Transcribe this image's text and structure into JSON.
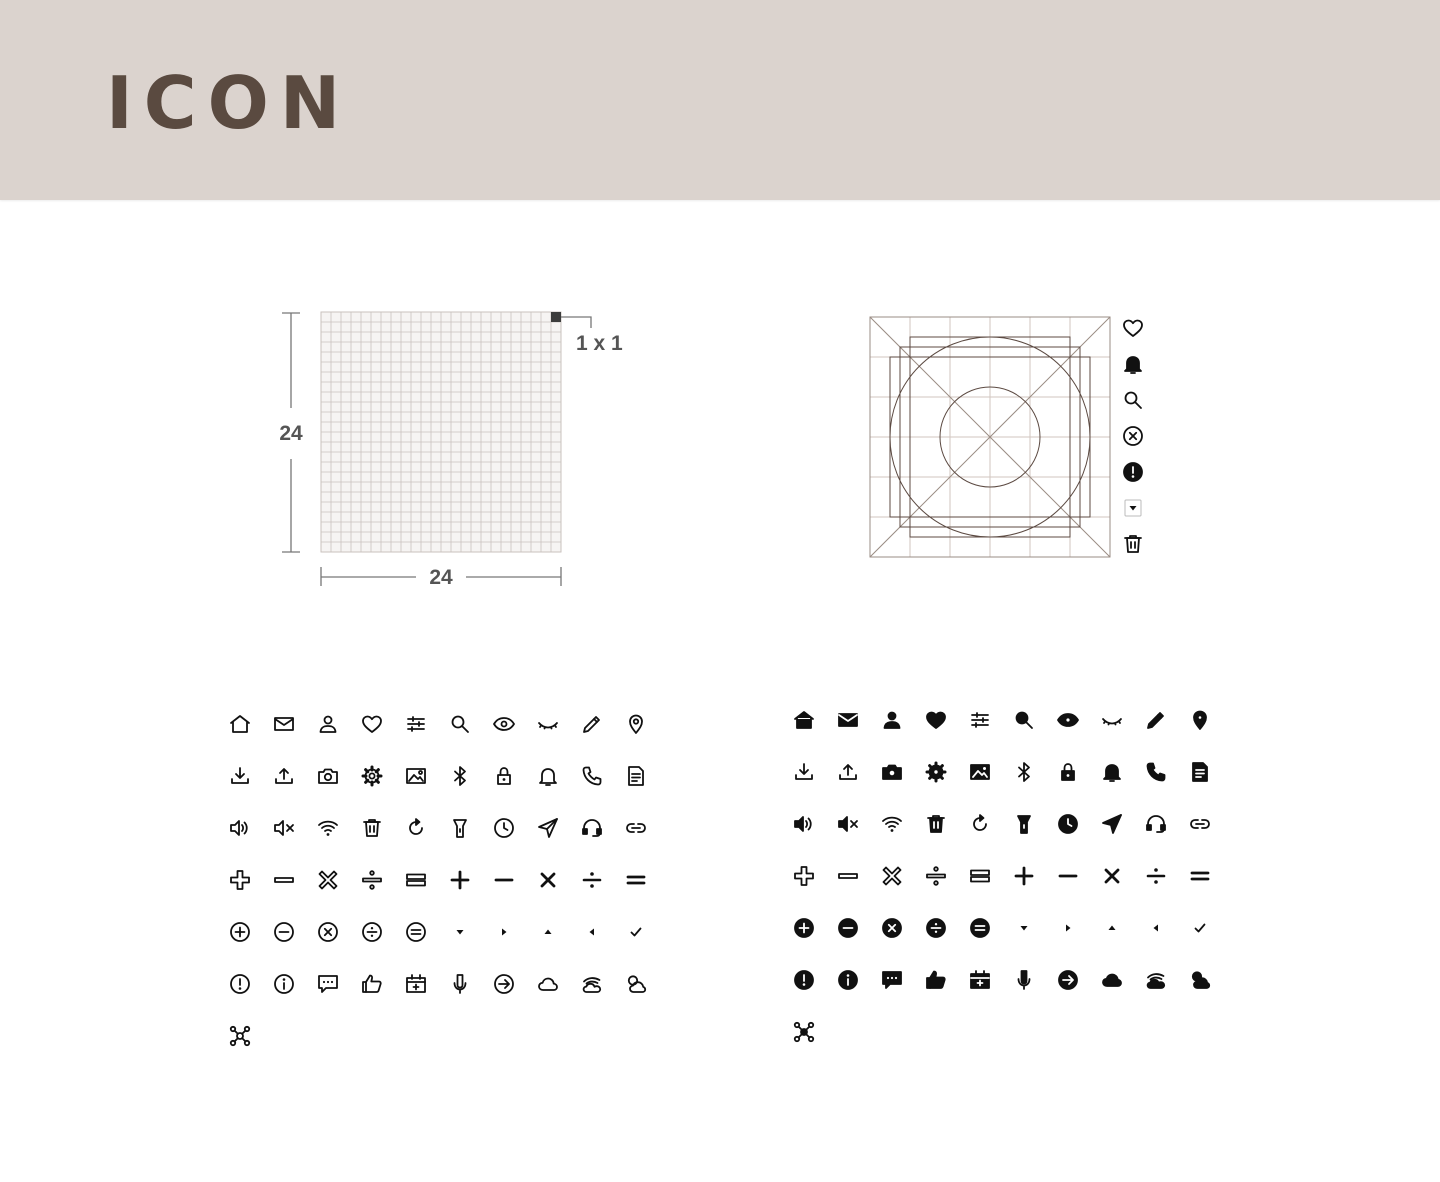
{
  "header": {
    "title": "ICON",
    "background": "#dbd3ce",
    "title_color": "#5a4a40"
  },
  "grid_spec": {
    "grid_units": 24,
    "width_label": "24",
    "height_label": "24",
    "pixel_label": "1 x 1"
  },
  "keyline": {
    "sample_icons": [
      "heart-outline-icon",
      "bell-filled-icon",
      "search-icon",
      "close-circle-icon",
      "alert-filled-icon",
      "caret-down-icon",
      "trash-icon"
    ]
  },
  "icon_sets": {
    "outline": [
      "home",
      "mail",
      "user",
      "heart",
      "sliders",
      "search",
      "eye",
      "eye-closed",
      "pencil",
      "location",
      "download",
      "upload",
      "camera",
      "settings",
      "image",
      "bluetooth",
      "lock",
      "bell",
      "phone",
      "document",
      "volume",
      "mute",
      "wifi",
      "trash",
      "refresh",
      "flashlight",
      "clock",
      "send",
      "headset",
      "link",
      "plus-outline",
      "minus-outline",
      "close-outline",
      "divide-outline",
      "equal-outline",
      "plus",
      "minus",
      "close",
      "divide",
      "equal",
      "plus-circle",
      "minus-circle",
      "close-circle",
      "divide-circle",
      "equal-circle",
      "caret-down",
      "caret-right",
      "caret-up",
      "caret-left",
      "check",
      "alert-circle",
      "info-circle",
      "chat",
      "thumbs-up",
      "calendar",
      "microphone",
      "arrow-right-circle",
      "cloud",
      "cloud-wind",
      "cloud-sun",
      "drone"
    ],
    "filled": [
      "home",
      "mail",
      "user",
      "heart",
      "sliders",
      "search",
      "eye",
      "eye-closed",
      "pencil",
      "location",
      "download",
      "upload",
      "camera",
      "settings",
      "image",
      "bluetooth",
      "lock",
      "bell",
      "phone",
      "document",
      "volume",
      "mute",
      "wifi",
      "trash",
      "refresh",
      "flashlight",
      "clock",
      "send",
      "headset",
      "link",
      "plus-outline",
      "minus-outline",
      "close-outline",
      "divide-outline",
      "equal-outline",
      "plus",
      "minus",
      "close",
      "divide",
      "equal",
      "plus-circle",
      "minus-circle",
      "close-circle",
      "divide-circle",
      "equal-circle",
      "caret-down",
      "caret-right",
      "caret-up",
      "caret-left",
      "check",
      "alert-circle",
      "info-circle",
      "chat",
      "thumbs-up",
      "calendar",
      "microphone",
      "arrow-right-circle",
      "cloud",
      "cloud-wind",
      "cloud-sun",
      "drone"
    ]
  }
}
